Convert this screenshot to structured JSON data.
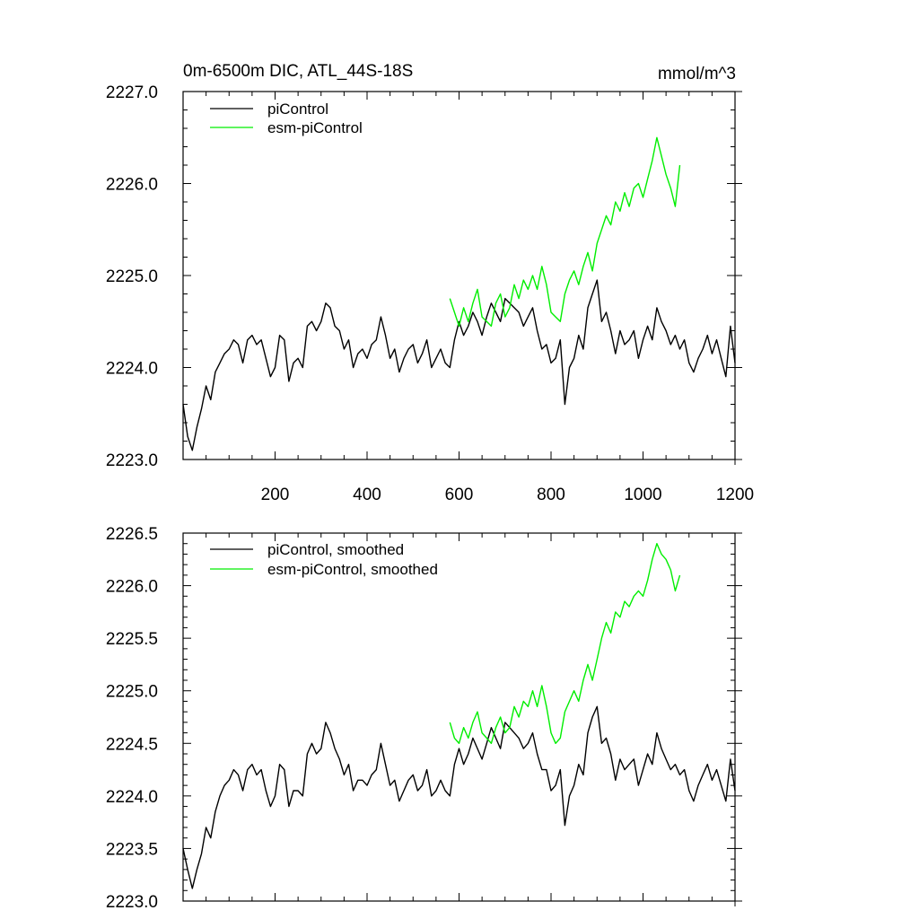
{
  "chart_data": [
    {
      "type": "line",
      "title": "0m-6500m DIC, ATL_44S-18S",
      "units": "mmol/m^3",
      "xlim": [
        0,
        1200
      ],
      "ylim": [
        2223.0,
        2227.0
      ],
      "xticks": [
        200,
        400,
        600,
        800,
        1000,
        1200
      ],
      "xtick_labels": [
        "200",
        "400",
        "600",
        "800",
        "1000",
        "1200"
      ],
      "yticks": [
        2223.0,
        2224.0,
        2225.0,
        2226.0,
        2227.0
      ],
      "ytick_labels": [
        "2223.0",
        "2224.0",
        "2225.0",
        "2226.0",
        "2227.0"
      ],
      "legend": "top-left",
      "series": [
        {
          "name": "piControl",
          "color": "#000000",
          "x": [
            0,
            10,
            20,
            30,
            40,
            50,
            60,
            70,
            80,
            90,
            100,
            110,
            120,
            130,
            140,
            150,
            160,
            170,
            180,
            190,
            200,
            210,
            220,
            230,
            240,
            250,
            260,
            270,
            280,
            290,
            300,
            310,
            320,
            330,
            340,
            350,
            360,
            370,
            380,
            390,
            400,
            410,
            420,
            430,
            440,
            450,
            460,
            470,
            480,
            490,
            500,
            510,
            520,
            530,
            540,
            550,
            560,
            570,
            580,
            590,
            600,
            610,
            620,
            630,
            640,
            650,
            660,
            670,
            680,
            690,
            700,
            710,
            720,
            730,
            740,
            750,
            760,
            770,
            780,
            790,
            800,
            810,
            820,
            830,
            840,
            850,
            860,
            870,
            880,
            890,
            900,
            910,
            920,
            930,
            940,
            950,
            960,
            970,
            980,
            990,
            1000,
            1010,
            1020,
            1030,
            1040,
            1050,
            1060,
            1070,
            1080,
            1090,
            1100,
            1110,
            1120,
            1130,
            1140,
            1150,
            1160,
            1170,
            1180,
            1190,
            1200
          ],
          "values": [
            2223.6,
            2223.25,
            2223.1,
            2223.35,
            2223.55,
            2223.8,
            2223.65,
            2223.95,
            2224.05,
            2224.15,
            2224.2,
            2224.3,
            2224.25,
            2224.05,
            2224.3,
            2224.35,
            2224.25,
            2224.3,
            2224.1,
            2223.9,
            2224.0,
            2224.35,
            2224.3,
            2223.85,
            2224.05,
            2224.1,
            2224.0,
            2224.45,
            2224.5,
            2224.4,
            2224.5,
            2224.7,
            2224.65,
            2224.45,
            2224.4,
            2224.2,
            2224.3,
            2224.0,
            2224.15,
            2224.2,
            2224.1,
            2224.25,
            2224.3,
            2224.55,
            2224.35,
            2224.1,
            2224.2,
            2223.95,
            2224.1,
            2224.2,
            2224.25,
            2224.05,
            2224.15,
            2224.3,
            2224.0,
            2224.1,
            2224.2,
            2224.05,
            2224.0,
            2224.3,
            2224.5,
            2224.35,
            2224.45,
            2224.6,
            2224.5,
            2224.35,
            2224.55,
            2224.7,
            2224.6,
            2224.5,
            2224.75,
            2224.7,
            2224.65,
            2224.6,
            2224.45,
            2224.55,
            2224.65,
            2224.4,
            2224.2,
            2224.25,
            2224.05,
            2224.1,
            2224.3,
            2223.6,
            2224.0,
            2224.1,
            2224.35,
            2224.2,
            2224.65,
            2224.8,
            2224.95,
            2224.5,
            2224.6,
            2224.4,
            2224.15,
            2224.4,
            2224.25,
            2224.3,
            2224.4,
            2224.1,
            2224.3,
            2224.45,
            2224.3,
            2224.65,
            2224.5,
            2224.4,
            2224.25,
            2224.35,
            2224.2,
            2224.3,
            2224.05,
            2223.95,
            2224.1,
            2224.2,
            2224.35,
            2224.15,
            2224.3,
            2224.1,
            2223.9,
            2224.45,
            2224.05
          ]
        },
        {
          "name": "esm-piControl",
          "color": "#00ee00",
          "x": [
            580,
            590,
            600,
            610,
            620,
            630,
            640,
            650,
            660,
            670,
            680,
            690,
            700,
            710,
            720,
            730,
            740,
            750,
            760,
            770,
            780,
            790,
            800,
            810,
            820,
            830,
            840,
            850,
            860,
            870,
            880,
            890,
            900,
            910,
            920,
            930,
            940,
            950,
            960,
            970,
            980,
            990,
            1000,
            1010,
            1020,
            1030,
            1040,
            1050,
            1060,
            1070,
            1080
          ],
          "values": [
            2224.75,
            2224.6,
            2224.45,
            2224.65,
            2224.5,
            2224.7,
            2224.85,
            2224.55,
            2224.5,
            2224.45,
            2224.7,
            2224.8,
            2224.55,
            2224.65,
            2224.9,
            2224.75,
            2224.95,
            2224.85,
            2225.0,
            2224.85,
            2225.1,
            2224.9,
            2224.6,
            2224.55,
            2224.5,
            2224.8,
            2224.95,
            2225.05,
            2224.9,
            2225.1,
            2225.25,
            2225.05,
            2225.35,
            2225.5,
            2225.65,
            2225.55,
            2225.8,
            2225.7,
            2225.9,
            2225.75,
            2225.95,
            2226.0,
            2225.85,
            2226.05,
            2226.25,
            2226.5,
            2226.3,
            2226.1,
            2225.95,
            2225.75,
            2226.2
          ]
        }
      ]
    },
    {
      "type": "line",
      "xlim": [
        0,
        1200
      ],
      "ylim": [
        2223.0,
        2226.5
      ],
      "xticks": [
        200,
        400,
        600,
        800,
        1000,
        1200
      ],
      "yticks": [
        2223.0,
        2223.5,
        2224.0,
        2224.5,
        2225.0,
        2225.5,
        2226.0,
        2226.5
      ],
      "ytick_labels": [
        "2223.0",
        "2223.5",
        "2224.0",
        "2224.5",
        "2225.0",
        "2225.5",
        "2226.0",
        "2226.5"
      ],
      "legend": "top-left",
      "series": [
        {
          "name": "piControl, smoothed",
          "color": "#000000",
          "x": [
            0,
            10,
            20,
            30,
            40,
            50,
            60,
            70,
            80,
            90,
            100,
            110,
            120,
            130,
            140,
            150,
            160,
            170,
            180,
            190,
            200,
            210,
            220,
            230,
            240,
            250,
            260,
            270,
            280,
            290,
            300,
            310,
            320,
            330,
            340,
            350,
            360,
            370,
            380,
            390,
            400,
            410,
            420,
            430,
            440,
            450,
            460,
            470,
            480,
            490,
            500,
            510,
            520,
            530,
            540,
            550,
            560,
            570,
            580,
            590,
            600,
            610,
            620,
            630,
            640,
            650,
            660,
            670,
            680,
            690,
            700,
            710,
            720,
            730,
            740,
            750,
            760,
            770,
            780,
            790,
            800,
            810,
            820,
            830,
            840,
            850,
            860,
            870,
            880,
            890,
            900,
            910,
            920,
            930,
            940,
            950,
            960,
            970,
            980,
            990,
            1000,
            1010,
            1020,
            1030,
            1040,
            1050,
            1060,
            1070,
            1080,
            1090,
            1100,
            1110,
            1120,
            1130,
            1140,
            1150,
            1160,
            1170,
            1180,
            1190,
            1200
          ],
          "values": [
            2223.5,
            2223.3,
            2223.12,
            2223.3,
            2223.45,
            2223.7,
            2223.6,
            2223.85,
            2224.0,
            2224.1,
            2224.15,
            2224.25,
            2224.2,
            2224.05,
            2224.25,
            2224.3,
            2224.2,
            2224.25,
            2224.05,
            2223.9,
            2224.0,
            2224.3,
            2224.25,
            2223.9,
            2224.05,
            2224.05,
            2224.0,
            2224.4,
            2224.5,
            2224.4,
            2224.45,
            2224.7,
            2224.6,
            2224.45,
            2224.35,
            2224.2,
            2224.3,
            2224.05,
            2224.15,
            2224.15,
            2224.1,
            2224.2,
            2224.25,
            2224.5,
            2224.3,
            2224.1,
            2224.15,
            2223.95,
            2224.05,
            2224.15,
            2224.2,
            2224.05,
            2224.1,
            2224.25,
            2224.0,
            2224.05,
            2224.15,
            2224.05,
            2224.0,
            2224.3,
            2224.45,
            2224.3,
            2224.4,
            2224.55,
            2224.45,
            2224.35,
            2224.5,
            2224.65,
            2224.55,
            2224.45,
            2224.7,
            2224.65,
            2224.6,
            2224.55,
            2224.45,
            2224.5,
            2224.6,
            2224.4,
            2224.25,
            2224.25,
            2224.05,
            2224.1,
            2224.25,
            2223.72,
            2224.0,
            2224.1,
            2224.3,
            2224.2,
            2224.6,
            2224.75,
            2224.85,
            2224.5,
            2224.55,
            2224.4,
            2224.15,
            2224.35,
            2224.25,
            2224.3,
            2224.35,
            2224.1,
            2224.25,
            2224.4,
            2224.3,
            2224.6,
            2224.45,
            2224.35,
            2224.25,
            2224.3,
            2224.2,
            2224.25,
            2224.05,
            2223.95,
            2224.1,
            2224.2,
            2224.3,
            2224.15,
            2224.25,
            2224.1,
            2223.95,
            2224.35,
            2224.05
          ]
        },
        {
          "name": "esm-piControl, smoothed",
          "color": "#00ee00",
          "x": [
            580,
            590,
            600,
            610,
            620,
            630,
            640,
            650,
            660,
            670,
            680,
            690,
            700,
            710,
            720,
            730,
            740,
            750,
            760,
            770,
            780,
            790,
            800,
            810,
            820,
            830,
            840,
            850,
            860,
            870,
            880,
            890,
            900,
            910,
            920,
            930,
            940,
            950,
            960,
            970,
            980,
            990,
            1000,
            1010,
            1020,
            1030,
            1040,
            1050,
            1060,
            1070,
            1080
          ],
          "values": [
            2224.7,
            2224.55,
            2224.5,
            2224.65,
            2224.55,
            2224.7,
            2224.8,
            2224.6,
            2224.55,
            2224.5,
            2224.65,
            2224.75,
            2224.6,
            2224.65,
            2224.85,
            2224.75,
            2224.9,
            2224.85,
            2225.0,
            2224.85,
            2225.05,
            2224.85,
            2224.6,
            2224.5,
            2224.55,
            2224.8,
            2224.9,
            2225.0,
            2224.9,
            2225.1,
            2225.25,
            2225.1,
            2225.3,
            2225.5,
            2225.65,
            2225.55,
            2225.75,
            2225.7,
            2225.85,
            2225.8,
            2225.9,
            2225.95,
            2225.9,
            2226.05,
            2226.25,
            2226.4,
            2226.3,
            2226.25,
            2226.15,
            2225.95,
            2226.1
          ]
        }
      ]
    }
  ]
}
